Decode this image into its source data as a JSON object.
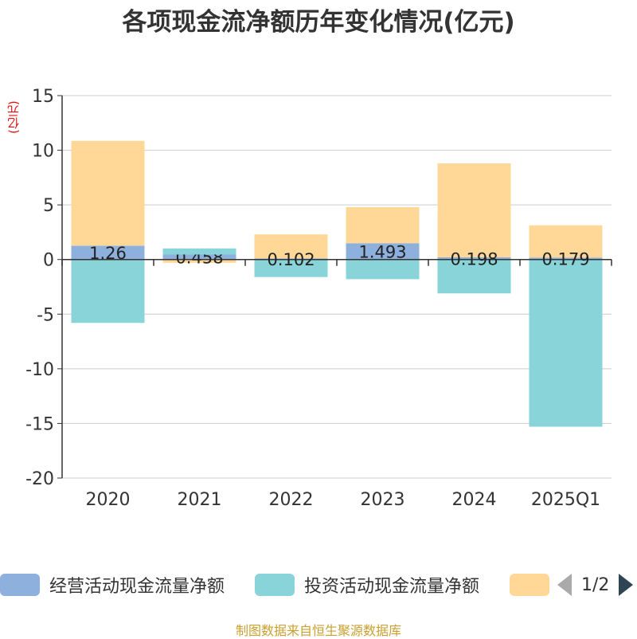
{
  "title": "各项现金流净额历年变化情况(亿元)",
  "unit": "(亿元)",
  "source": "制图数据来自恒生聚源数据库",
  "legend": {
    "items": [
      {
        "label": "经营活动现金流量净额",
        "color": "#8eb0dc"
      },
      {
        "label": "投资活动现金流量净额",
        "color": "#88d4d8"
      },
      {
        "label": "",
        "color": "#ffd898"
      }
    ],
    "page": "1/2"
  },
  "chart_data": {
    "type": "bar",
    "stacked": true,
    "categories": [
      "2020",
      "2021",
      "2022",
      "2023",
      "2024",
      "2025Q1"
    ],
    "ylim": [
      -20,
      15
    ],
    "yticks": [
      15,
      10,
      5,
      0,
      -5,
      -10,
      -15,
      -20
    ],
    "series": [
      {
        "name": "经营活动现金流量净额",
        "color": "#8eb0dc",
        "values": [
          1.26,
          0.458,
          0.102,
          1.493,
          0.198,
          0.179
        ],
        "labels": [
          "1.26",
          "0.458",
          "0.102",
          "1.493",
          "0.198",
          "0.179"
        ]
      },
      {
        "name": "投资活动现金流量净额",
        "color": "#88d4d8",
        "values": [
          -5.8,
          0.55,
          -1.6,
          -1.8,
          -3.1,
          -15.3
        ]
      },
      {
        "name": "",
        "color": "#ffd898",
        "values": [
          9.6,
          -0.3,
          2.2,
          3.3,
          8.6,
          2.95
        ]
      }
    ]
  }
}
